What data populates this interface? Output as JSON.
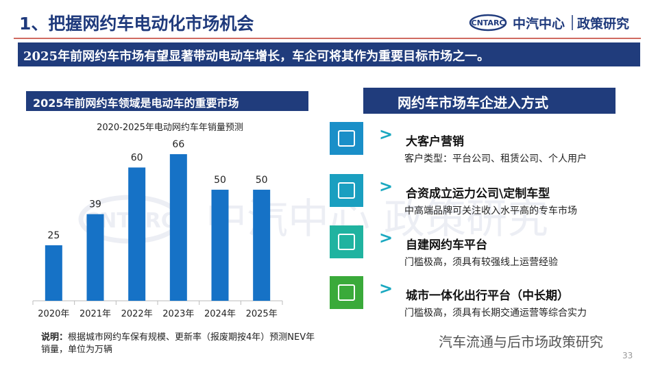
{
  "header": {
    "title": "1、把握网约车电动化市场机会",
    "logo_mark": "CNTARC",
    "logo_name": "中汽中心",
    "logo_dept": "政策研究"
  },
  "banner": "2025年前网约车市场有望显著带动电动车增长，车企可将其作为重要目标市场之一。",
  "left_panel": {
    "heading": "2025年前网约车领域是电动车的重要市场",
    "note_label": "说明：",
    "note": "根据城市网约车保有规模、更新率（报废期按4年）预测NEV年销量，单位为万辆"
  },
  "chart_data": {
    "type": "bar",
    "title": "2020-2025年电动网约车年销量预测",
    "categories": [
      "2020年",
      "2021年",
      "2022年",
      "2023年",
      "2024年",
      "2025年"
    ],
    "values": [
      25,
      39,
      60,
      66,
      50,
      50
    ],
    "color": "#1672c6"
  },
  "right_panel": {
    "heading": "网约车市场车企进入方式",
    "items": [
      {
        "title": "大客户营销",
        "description": "客户类型：平台公司、租赁公司、个人用户"
      },
      {
        "title": "合资成立运力公司\\定制车型",
        "description": "中高端品牌可关注收入水平高的专车市场"
      },
      {
        "title": "自建网约车平台",
        "description": "门槛极高，须具有较强线上运营经验"
      },
      {
        "title": "城市一体化出行平台（中长期）",
        "description": "门槛极高，须具有长期交通运营等综合实力"
      }
    ]
  },
  "footer": {
    "source": "汽车流通与后市场政策研究",
    "page": "33"
  }
}
